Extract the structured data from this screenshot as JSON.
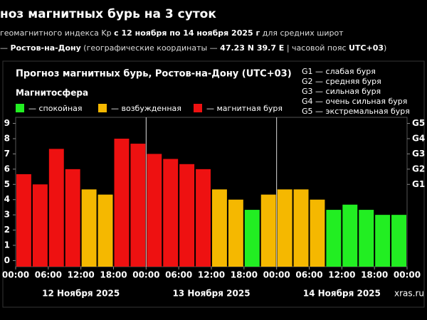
{
  "header": {
    "title": "ноз магнитных бурь на 3 суток",
    "line1": [
      "геомагнитного индекса Kp ",
      "с 12 ноября по 14 ноября 2025 г",
      " для средних широт"
    ],
    "line2": [
      "— ",
      "Ростов-на-Дону",
      " (географические координаты — ",
      "47.23 N 39.7 E",
      " | часовой пояс ",
      "UTC+03",
      ")"
    ]
  },
  "chart_data": {
    "type": "bar",
    "title": "Прогноз магнитных бурь, Ростов-на-Дону (UTC+03)",
    "legend_title": "Магнитосфера",
    "legend": [
      {
        "name": "— спокойная",
        "color": "#22ee22"
      },
      {
        "name": "— возбужденная",
        "color": "#f5b800"
      },
      {
        "name": "— магнитная буря",
        "color": "#ee1111"
      }
    ],
    "g_scale": [
      "G1 — слабая буря",
      "G2 — средняя буря",
      "G3 — сильная буря",
      "G4 — очень сильная буря",
      "G5 — экстремальная буря"
    ],
    "x": [
      0,
      3,
      6,
      9,
      12,
      15,
      18,
      21,
      24,
      27,
      30,
      33,
      36,
      39,
      42,
      45,
      48,
      51,
      54,
      57,
      60,
      63,
      66,
      69
    ],
    "bar_width": 3,
    "values": [
      5.67,
      5,
      7.33,
      6,
      4.67,
      4.33,
      8,
      7.67,
      7,
      6.67,
      6.33,
      6,
      4.67,
      4,
      3.33,
      4.33,
      4.67,
      4.67,
      4,
      3.33,
      3.67,
      3.33,
      3,
      3
    ],
    "colors": [
      "#ee1111",
      "#ee1111",
      "#ee1111",
      "#ee1111",
      "#f5b800",
      "#f5b800",
      "#ee1111",
      "#ee1111",
      "#ee1111",
      "#ee1111",
      "#ee1111",
      "#ee1111",
      "#f5b800",
      "#f5b800",
      "#22ee22",
      "#f5b800",
      "#f5b800",
      "#f5b800",
      "#f5b800",
      "#22ee22",
      "#22ee22",
      "#22ee22",
      "#22ee22",
      "#22ee22"
    ],
    "xlim": [
      0,
      72
    ],
    "xticks": [
      {
        "value": 0,
        "label": "00:00"
      },
      {
        "value": 6,
        "label": "06:00"
      },
      {
        "value": 12,
        "label": "12:00"
      },
      {
        "value": 18,
        "label": "18:00"
      },
      {
        "value": 24,
        "label": "00:00"
      },
      {
        "value": 30,
        "label": "06:00"
      },
      {
        "value": 36,
        "label": "12:00"
      },
      {
        "value": 42,
        "label": "18:00"
      },
      {
        "value": 48,
        "label": "00:00"
      },
      {
        "value": 54,
        "label": "06:00"
      },
      {
        "value": 60,
        "label": "12:00"
      },
      {
        "value": 66,
        "label": "18:00"
      },
      {
        "value": 72,
        "label": "00:00"
      }
    ],
    "days": [
      {
        "value": 12,
        "label": "12 Ноября 2025"
      },
      {
        "value": 36,
        "label": "13 Ноября 2025"
      },
      {
        "value": 60,
        "label": "14 Ноября 2025"
      }
    ],
    "separators": [
      24,
      48
    ],
    "ylim": [
      -0.4,
      9.4
    ],
    "yticks": [
      0,
      1,
      2,
      3,
      4,
      5,
      6,
      7,
      8,
      9
    ],
    "y2lim": [
      -0.4,
      9.4
    ],
    "y2ticks": [
      {
        "value": 5,
        "label": "G1"
      },
      {
        "value": 6,
        "label": "G2"
      },
      {
        "value": 7,
        "label": "G3"
      },
      {
        "value": 8,
        "label": "G4"
      },
      {
        "value": 9,
        "label": "G5"
      }
    ],
    "grid": false,
    "watermark": "xras.ru"
  }
}
